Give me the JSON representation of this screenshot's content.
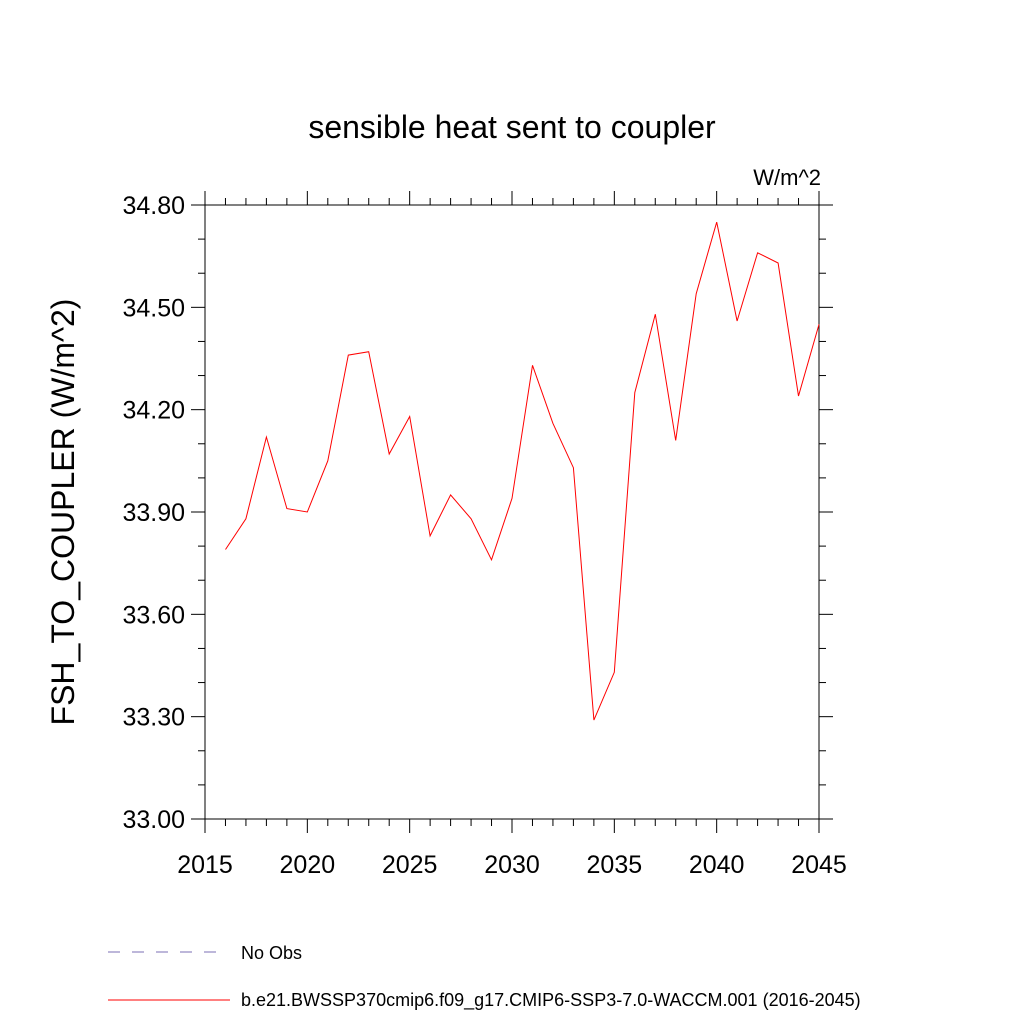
{
  "chart_data": {
    "type": "line",
    "title": "sensible heat sent to coupler",
    "units_label": "W/m^2",
    "ylabel": "FSH_TO_COUPLER  (W/m^2)",
    "xlabel": "",
    "xlim": [
      2015,
      2045
    ],
    "ylim": [
      33.0,
      34.8
    ],
    "xticks": [
      "2015",
      "2020",
      "2025",
      "2030",
      "2035",
      "2040",
      "2045"
    ],
    "xtick_values": [
      2015,
      2020,
      2025,
      2030,
      2035,
      2040,
      2045
    ],
    "yticks": [
      "33.00",
      "33.30",
      "33.60",
      "33.90",
      "34.20",
      "34.50",
      "34.80"
    ],
    "ytick_values": [
      33.0,
      33.3,
      33.6,
      33.9,
      34.2,
      34.5,
      34.8
    ],
    "grid": false,
    "legend_position": "bottom",
    "series": [
      {
        "name": "b.e21.BWSSP370cmip6.f09_g17.CMIP6-SSP3-7.0-WACCM.001 (2016-2045)",
        "color": "#ff0000",
        "style": "solid",
        "x": [
          2016,
          2017,
          2018,
          2019,
          2020,
          2021,
          2022,
          2023,
          2024,
          2025,
          2026,
          2027,
          2028,
          2029,
          2030,
          2031,
          2032,
          2033,
          2034,
          2035,
          2036,
          2037,
          2038,
          2039,
          2040,
          2041,
          2042,
          2043,
          2044,
          2045
        ],
        "y": [
          33.79,
          33.88,
          34.12,
          33.91,
          33.9,
          34.05,
          34.36,
          34.37,
          34.07,
          34.18,
          33.83,
          33.95,
          33.88,
          33.76,
          33.94,
          34.33,
          34.16,
          34.03,
          33.29,
          33.43,
          34.25,
          34.48,
          34.11,
          34.54,
          34.75,
          34.46,
          34.66,
          34.63,
          34.24,
          34.45
        ]
      },
      {
        "name": "No Obs",
        "color": "#7b6fb5",
        "style": "dashed",
        "x": [],
        "y": []
      }
    ]
  }
}
